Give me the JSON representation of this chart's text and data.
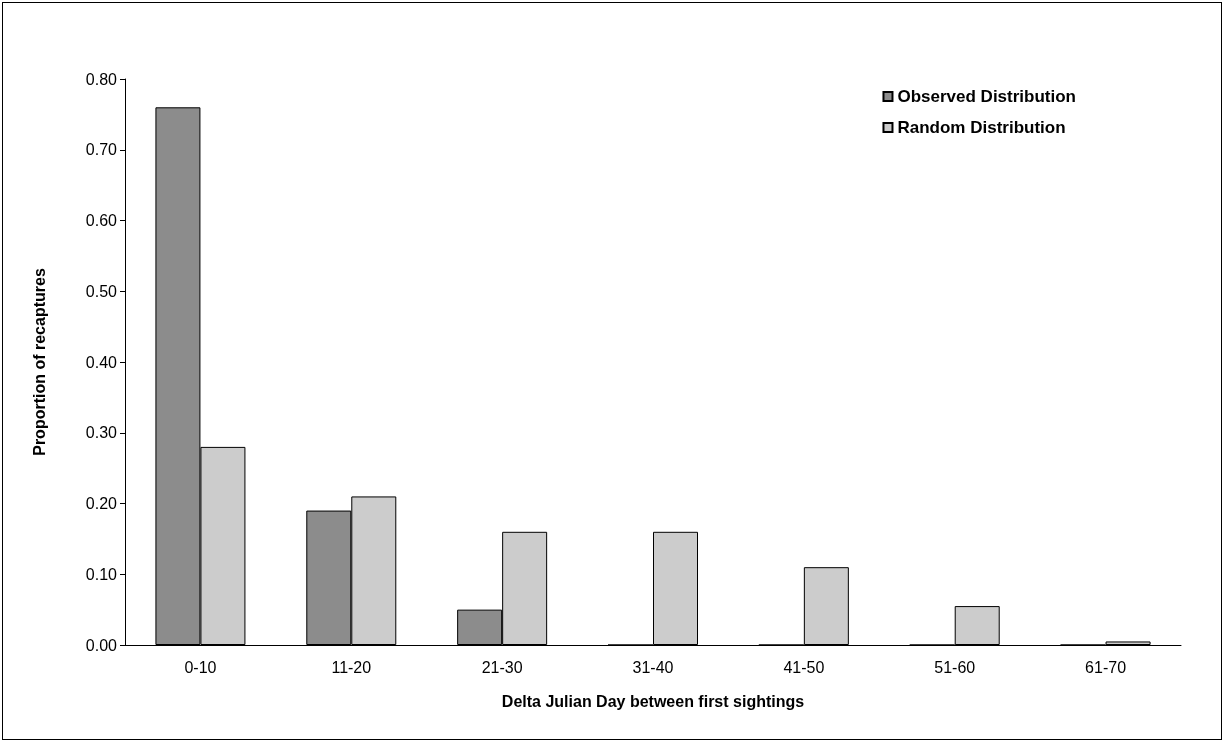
{
  "chart_data": {
    "type": "bar",
    "xlabel": "Delta Julian Day between first sightings",
    "ylabel": "Proportion of recaptures",
    "categories": [
      "0-10",
      "11-20",
      "21-30",
      "31-40",
      "41-50",
      "51-60",
      "61-70"
    ],
    "series": [
      {
        "name": "Observed Distribution",
        "color": "#8c8c8c",
        "values": [
          0.76,
          0.19,
          0.05,
          0,
          0,
          0,
          0
        ]
      },
      {
        "name": "Random Distribution",
        "color": "#cccccc",
        "values": [
          0.28,
          0.21,
          0.16,
          0.16,
          0.11,
          0.055,
          0.005
        ]
      }
    ],
    "ylim": [
      0,
      0.8
    ],
    "yticks": [
      {
        "value": 0,
        "label": "0.00"
      },
      {
        "value": 0.1,
        "label": "0.10"
      },
      {
        "value": 0.2,
        "label": "0.20"
      },
      {
        "value": 0.3,
        "label": "0.30"
      },
      {
        "value": 0.4,
        "label": "0.40"
      },
      {
        "value": 0.5,
        "label": "0.50"
      },
      {
        "value": 0.6,
        "label": "0.60"
      },
      {
        "value": 0.7,
        "label": "0.70"
      },
      {
        "value": 0.8,
        "label": "0.80"
      }
    ],
    "grid": false,
    "legend": "top right"
  }
}
